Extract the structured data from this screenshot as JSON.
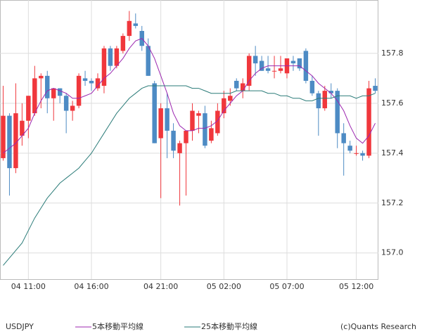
{
  "chart_data": {
    "type": "candlestick",
    "symbol": "USDJPY",
    "copyright": "(c)Quants Research",
    "categories": [
      null,
      null,
      null,
      null,
      "04 11:00",
      null,
      null,
      null,
      null,
      null,
      null,
      null,
      null,
      null,
      "04 16:00",
      null,
      null,
      null,
      null,
      null,
      null,
      null,
      null,
      null,
      null,
      "04 21:00",
      null,
      null,
      null,
      null,
      null,
      null,
      null,
      null,
      null,
      "05 02:00",
      null,
      null,
      null,
      null,
      null,
      null,
      null,
      null,
      null,
      "05 07:00",
      null,
      null,
      null,
      null,
      null,
      null,
      null,
      null,
      null,
      null,
      "05 12:00",
      null,
      null,
      null
    ],
    "open": [
      157.38,
      157.55,
      157.34,
      157.47,
      157.53,
      157.56,
      157.7,
      157.71,
      157.62,
      157.66,
      157.63,
      157.57,
      157.59,
      157.7,
      157.69,
      157.66,
      157.67,
      157.82,
      157.75,
      157.81,
      157.87,
      157.92,
      157.89,
      157.83,
      157.68,
      157.46,
      157.58,
      157.49,
      157.4,
      157.44,
      157.49,
      157.55,
      157.56,
      157.45,
      157.48,
      157.56,
      157.61,
      157.69,
      157.65,
      157.67,
      157.79,
      157.77,
      157.74,
      157.73,
      157.73,
      157.72,
      157.77,
      157.78,
      157.81,
      157.69,
      157.64,
      157.58,
      157.65,
      157.65,
      157.48,
      157.43,
      157.4,
      157.4,
      157.39,
      157.67
    ],
    "high": [
      157.67,
      157.56,
      157.68,
      157.6,
      157.63,
      157.75,
      157.72,
      157.73,
      157.66,
      157.66,
      157.64,
      157.61,
      157.72,
      157.73,
      157.7,
      157.72,
      157.83,
      157.83,
      157.83,
      157.88,
      157.97,
      157.96,
      157.91,
      157.86,
      157.69,
      157.6,
      157.64,
      157.52,
      157.45,
      157.48,
      157.6,
      157.57,
      157.59,
      157.53,
      157.6,
      157.65,
      157.66,
      157.7,
      157.7,
      157.8,
      157.83,
      157.79,
      157.79,
      157.79,
      157.79,
      157.78,
      157.79,
      157.78,
      157.82,
      157.71,
      157.65,
      157.67,
      157.68,
      157.66,
      157.52,
      157.45,
      157.43,
      157.41,
      157.69,
      157.7
    ],
    "low": [
      157.37,
      157.23,
      157.32,
      157.43,
      157.46,
      157.55,
      157.58,
      157.56,
      157.53,
      157.6,
      157.48,
      157.53,
      157.58,
      157.67,
      157.65,
      157.65,
      157.64,
      157.73,
      157.74,
      157.8,
      157.85,
      157.9,
      157.81,
      157.71,
      157.44,
      157.22,
      157.38,
      157.38,
      157.19,
      157.23,
      157.45,
      157.48,
      157.42,
      157.44,
      157.47,
      157.54,
      157.59,
      157.65,
      157.62,
      157.65,
      157.71,
      157.73,
      157.72,
      157.7,
      157.72,
      157.7,
      157.73,
      157.73,
      157.68,
      157.63,
      157.47,
      157.57,
      157.62,
      157.42,
      157.31,
      157.4,
      157.39,
      157.37,
      157.38,
      157.64
    ],
    "close": [
      157.55,
      157.34,
      157.56,
      157.53,
      157.63,
      157.7,
      157.71,
      157.62,
      157.66,
      157.63,
      157.57,
      157.59,
      157.71,
      157.69,
      157.68,
      157.7,
      157.82,
      157.75,
      157.82,
      157.87,
      157.93,
      157.91,
      157.83,
      157.71,
      157.44,
      157.58,
      157.49,
      157.41,
      157.44,
      157.49,
      157.57,
      157.56,
      157.43,
      157.5,
      157.57,
      157.62,
      157.63,
      157.66,
      157.68,
      157.79,
      157.76,
      157.73,
      157.73,
      157.73,
      157.74,
      157.78,
      157.76,
      157.74,
      157.69,
      157.64,
      157.58,
      157.65,
      157.64,
      157.48,
      157.44,
      157.41,
      157.4,
      157.39,
      157.66,
      157.65
    ],
    "up_color": "#f0373c",
    "down_color": "#4d8bc4",
    "series": [
      {
        "name": "5本移動平均線",
        "color": "#9c27b0",
        "values": [
          157.4,
          157.42,
          157.44,
          157.47,
          157.5,
          157.56,
          157.61,
          157.65,
          157.66,
          157.65,
          157.64,
          157.62,
          157.62,
          157.63,
          157.64,
          157.67,
          157.7,
          157.72,
          157.75,
          157.78,
          157.82,
          157.85,
          157.86,
          157.83,
          157.78,
          157.71,
          157.64,
          157.56,
          157.51,
          157.49,
          157.49,
          157.5,
          157.5,
          157.51,
          157.53,
          157.57,
          157.6,
          157.63,
          157.65,
          157.69,
          157.72,
          157.74,
          157.75,
          157.75,
          157.75,
          157.75,
          157.75,
          157.75,
          157.73,
          157.71,
          157.68,
          157.66,
          157.64,
          157.61,
          157.57,
          157.51,
          157.46,
          157.44,
          157.47,
          157.52
        ]
      },
      {
        "name": "25本移動平均線",
        "color": "#2a7b78",
        "values": [
          156.95,
          156.98,
          157.01,
          157.04,
          157.09,
          157.14,
          157.18,
          157.22,
          157.25,
          157.28,
          157.3,
          157.32,
          157.34,
          157.37,
          157.4,
          157.44,
          157.48,
          157.52,
          157.56,
          157.59,
          157.62,
          157.64,
          157.66,
          157.67,
          157.67,
          157.67,
          157.67,
          157.67,
          157.67,
          157.67,
          157.66,
          157.66,
          157.65,
          157.64,
          157.64,
          157.64,
          157.64,
          157.65,
          157.65,
          157.65,
          157.65,
          157.65,
          157.64,
          157.64,
          157.63,
          157.63,
          157.62,
          157.62,
          157.61,
          157.61,
          157.62,
          157.62,
          157.62,
          157.63,
          157.63,
          157.63,
          157.62,
          157.63,
          157.63,
          157.64
        ]
      }
    ],
    "ylim": [
      156.895,
      158.014
    ],
    "yticks": [
      {
        "value": 157,
        "label": "157.0"
      },
      157.2,
      157.4,
      157.6,
      157.8
    ],
    "grid": true
  }
}
